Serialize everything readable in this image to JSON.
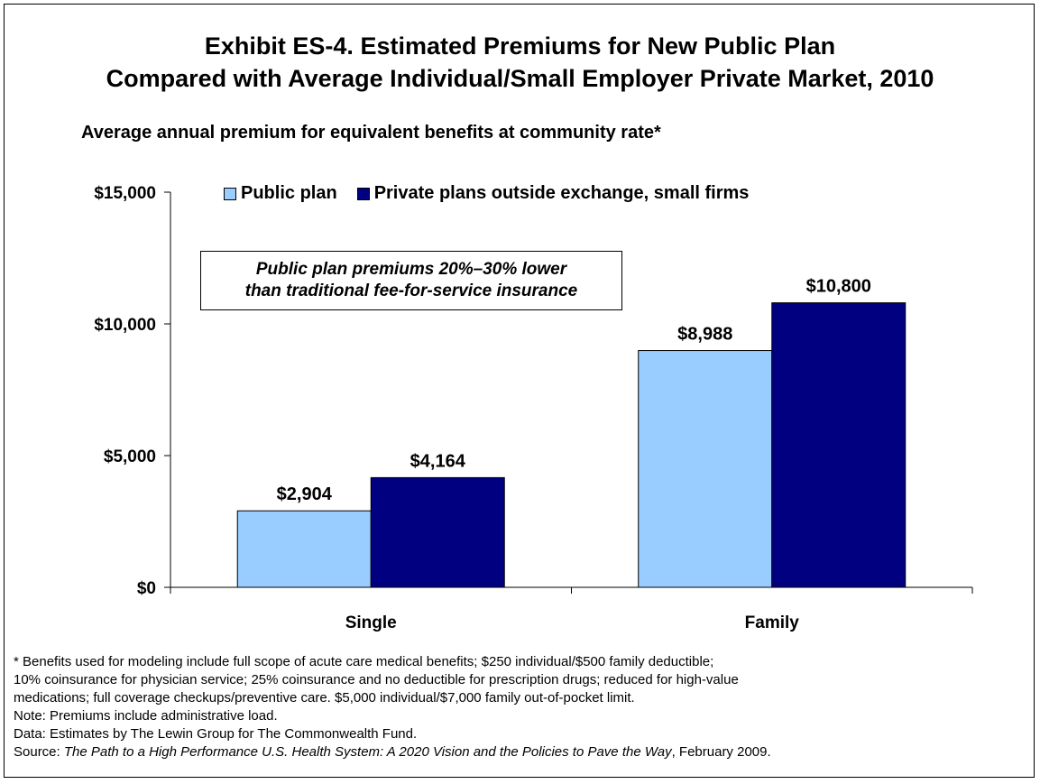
{
  "title_line1": "Exhibit ES-4. Estimated Premiums for New Public Plan",
  "title_line2": "Compared with Average Individual/Small Employer Private Market, 2010",
  "subtitle": "Average annual premium for equivalent benefits at community rate*",
  "callout_line1": "Public plan premiums 20%–30% lower",
  "callout_line2": "than traditional fee-for-service insurance",
  "colors": {
    "public": "#99ccff",
    "private": "#000080"
  },
  "chart_data": {
    "type": "bar",
    "categories": [
      "Single",
      "Family"
    ],
    "series": [
      {
        "name": "Public plan",
        "values": [
          2904,
          8988
        ],
        "labels": [
          "$2,904",
          "$8,988"
        ]
      },
      {
        "name": "Private plans outside exchange, small firms",
        "values": [
          4164,
          10800
        ],
        "labels": [
          "$4,164",
          "$10,800"
        ]
      }
    ],
    "ylim": [
      0,
      15000
    ],
    "yticks": [
      0,
      5000,
      10000,
      15000
    ],
    "ytick_labels": [
      "$0",
      "$5,000",
      "$10,000",
      "$15,000"
    ],
    "legend": "top"
  },
  "footnotes": {
    "line1": "* Benefits used for modeling include full scope of acute care medical benefits; $250 individual/$500 family deductible;",
    "line2": "10% coinsurance for physician service; 25% coinsurance and no deductible for prescription drugs; reduced for high-value",
    "line3": "medications; full coverage checkups/preventive care. $5,000 individual/$7,000 family out-of-pocket limit.",
    "note": "Note: Premiums include administrative load.",
    "data": "Data: Estimates by The Lewin Group for The Commonwealth Fund.",
    "source_prefix": "Source: ",
    "source_title": "The Path to a High Performance U.S. Health System: A 2020 Vision and the Policies to Pave the Way",
    "source_suffix": ", February 2009."
  }
}
